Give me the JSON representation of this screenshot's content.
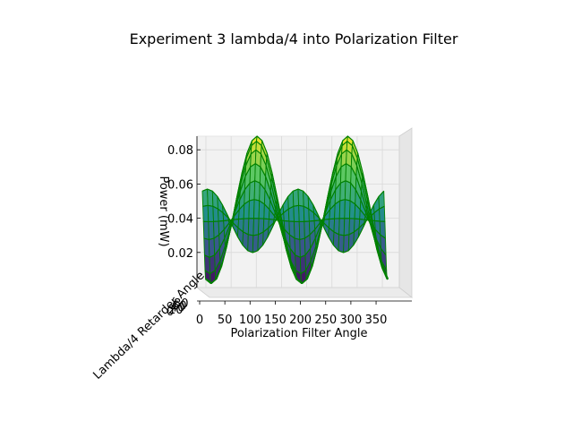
{
  "chart_data": {
    "type": "surface",
    "title": "Experiment 3 lambda/4 into Polarization Filter",
    "xlabel": "Polarization Filter Angle",
    "ylabel": "Lambda/4 Retarder Angle",
    "zlabel": "Power (mW)",
    "x_ticks": [
      "0",
      "50",
      "100",
      "150",
      "200",
      "250",
      "300",
      "350"
    ],
    "z_ticks": [
      "0.02",
      "0.04",
      "0.06",
      "0.08"
    ],
    "y_ticks": [
      "0",
      "20",
      "40",
      "60",
      "80"
    ],
    "xlim": [
      0,
      370
    ],
    "zlim": [
      0.0,
      0.09
    ],
    "colormap": [
      "#440154",
      "#3b528b",
      "#21918c",
      "#5ec962",
      "#fde725"
    ],
    "edge_color": "#008000",
    "series": [
      {
        "retarder_angle": 0,
        "peak_power": 0.021
      },
      {
        "retarder_angle": 10,
        "peak_power": 0.031
      },
      {
        "retarder_angle": 20,
        "peak_power": 0.041
      },
      {
        "retarder_angle": 30,
        "peak_power": 0.052
      },
      {
        "retarder_angle": 40,
        "peak_power": 0.063
      },
      {
        "retarder_angle": 50,
        "peak_power": 0.073
      },
      {
        "retarder_angle": 60,
        "peak_power": 0.081
      },
      {
        "retarder_angle": 70,
        "peak_power": 0.086
      },
      {
        "retarder_angle": 80,
        "peak_power": 0.089
      }
    ],
    "baseline_power": 0.04,
    "period_deg": 180,
    "peak_angles": [
      100,
      280
    ],
    "grid": true
  }
}
